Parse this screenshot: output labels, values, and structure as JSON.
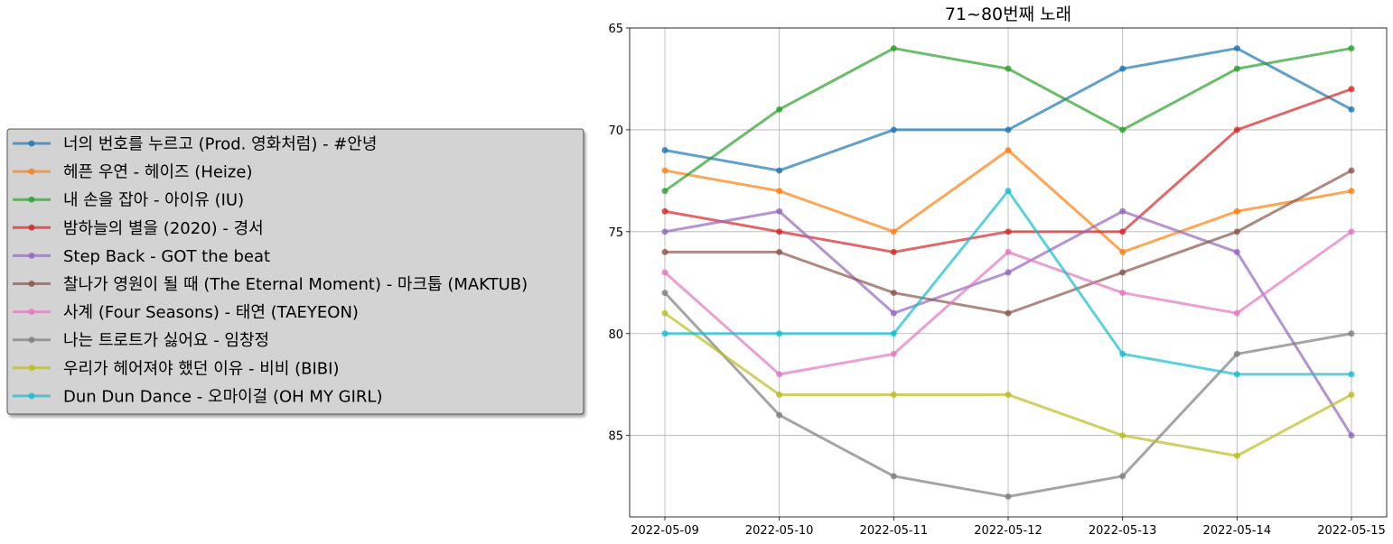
{
  "chart_data": {
    "type": "line",
    "title": "71~80번째 노래",
    "xlabel": "",
    "ylabel": "",
    "x": [
      "2022-05-09",
      "2022-05-10",
      "2022-05-11",
      "2022-05-12",
      "2022-05-13",
      "2022-05-14",
      "2022-05-15"
    ],
    "ylim": [
      89,
      65
    ],
    "y_inverted": true,
    "yticks": [
      65,
      70,
      75,
      80,
      85
    ],
    "grid": true,
    "legend_position": "outside-left",
    "series": [
      {
        "name": "너의 번호를 누르고 (Prod. 영화처럼) - #안녕",
        "color": "#1f77b4",
        "values": [
          71,
          72,
          70,
          70,
          67,
          66,
          69
        ]
      },
      {
        "name": "헤픈 우연 - 헤이즈 (Heize)",
        "color": "#ff7f0e",
        "values": [
          72,
          73,
          75,
          71,
          76,
          74,
          73
        ]
      },
      {
        "name": "내 손을 잡아 - 아이유 (IU)",
        "color": "#2ca02c",
        "values": [
          73,
          69,
          66,
          67,
          70,
          67,
          66
        ]
      },
      {
        "name": "밤하늘의 별을 (2020) - 경서",
        "color": "#d62728",
        "values": [
          74,
          75,
          76,
          75,
          75,
          70,
          68
        ]
      },
      {
        "name": "Step Back - GOT the beat",
        "color": "#9467bd",
        "values": [
          75,
          74,
          79,
          77,
          74,
          76,
          85
        ]
      },
      {
        "name": "찰나가 영원이 될 때 (The Eternal Moment) - 마크툽 (MAKTUB)",
        "color": "#8c564b",
        "values": [
          76,
          76,
          78,
          79,
          77,
          75,
          72
        ]
      },
      {
        "name": "사계 (Four Seasons) - 태연 (TAEYEON)",
        "color": "#e377c2",
        "values": [
          77,
          82,
          81,
          76,
          78,
          79,
          75
        ]
      },
      {
        "name": "나는 트로트가 싫어요 - 임창정",
        "color": "#7f7f7f",
        "values": [
          78,
          84,
          87,
          88,
          87,
          81,
          80
        ]
      },
      {
        "name": "우리가 헤어져야 했던 이유 - 비비 (BIBI)",
        "color": "#bcbd22",
        "values": [
          79,
          83,
          83,
          83,
          85,
          86,
          83
        ]
      },
      {
        "name": "Dun Dun Dance - 오마이걸 (OH MY GIRL)",
        "color": "#17becf",
        "values": [
          80,
          80,
          80,
          73,
          81,
          82,
          82
        ]
      }
    ]
  }
}
